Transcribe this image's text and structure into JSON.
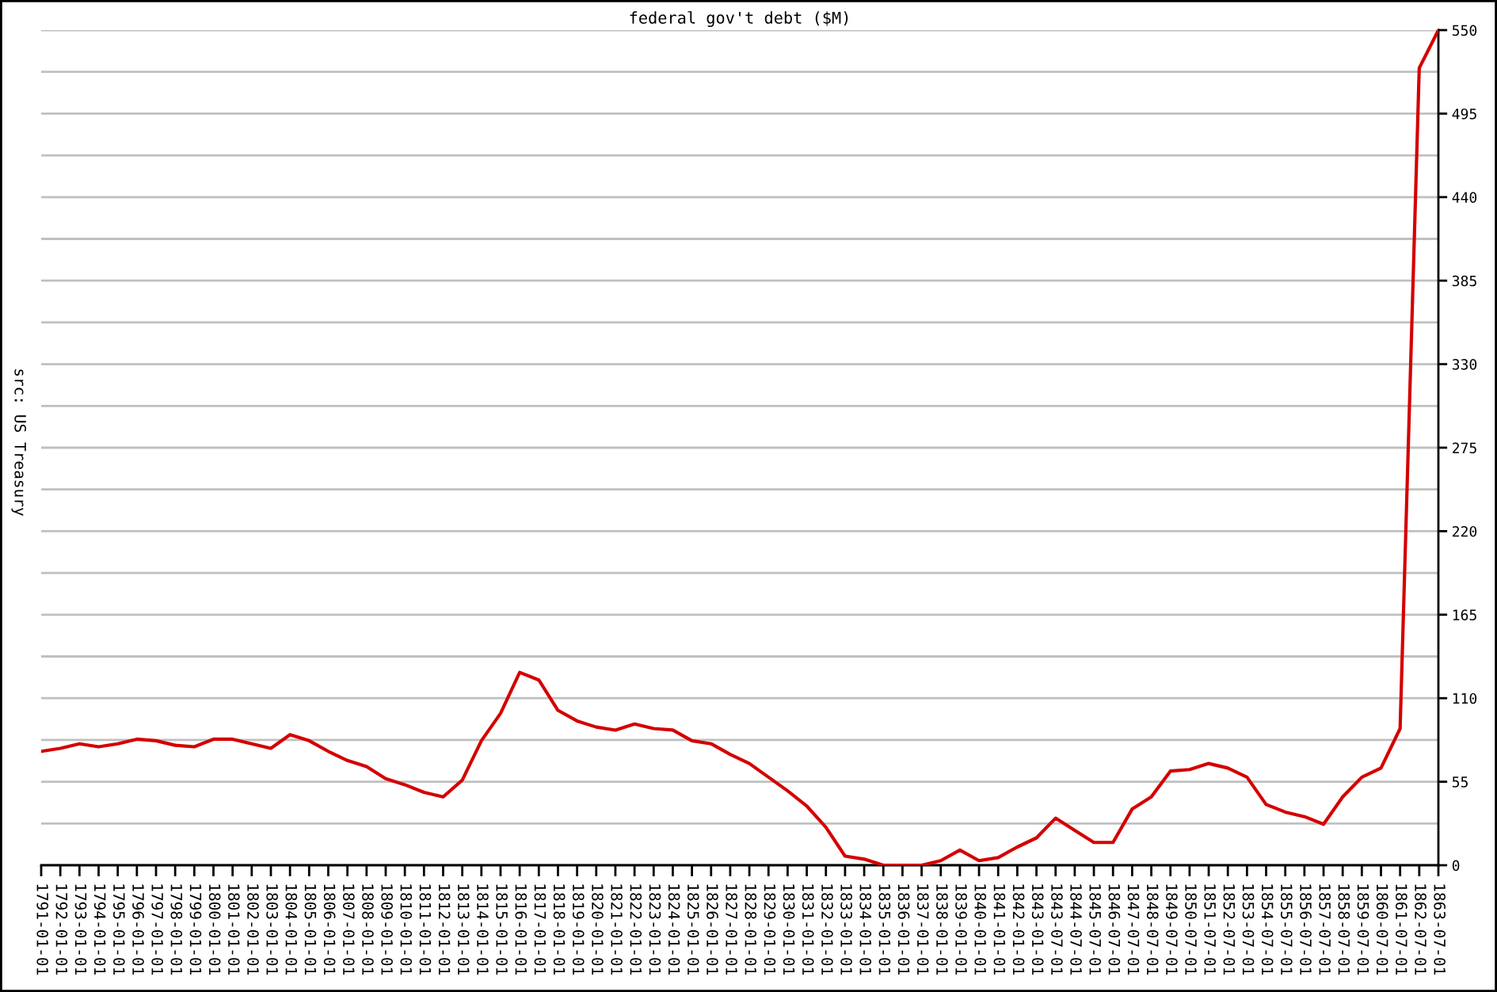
{
  "chart_data": {
    "type": "line",
    "title": "federal gov't debt ($M)",
    "annotations": [
      "src: US Treasury"
    ],
    "categories": [
      "1791-01-01",
      "1792-01-01",
      "1793-01-01",
      "1794-01-01",
      "1795-01-01",
      "1796-01-01",
      "1797-01-01",
      "1798-01-01",
      "1799-01-01",
      "1800-01-01",
      "1801-01-01",
      "1802-01-01",
      "1803-01-01",
      "1804-01-01",
      "1805-01-01",
      "1806-01-01",
      "1807-01-01",
      "1808-01-01",
      "1809-01-01",
      "1810-01-01",
      "1811-01-01",
      "1812-01-01",
      "1813-01-01",
      "1814-01-01",
      "1815-01-01",
      "1816-01-01",
      "1817-01-01",
      "1818-01-01",
      "1819-01-01",
      "1820-01-01",
      "1821-01-01",
      "1822-01-01",
      "1823-01-01",
      "1824-01-01",
      "1825-01-01",
      "1826-01-01",
      "1827-01-01",
      "1828-01-01",
      "1829-01-01",
      "1830-01-01",
      "1831-01-01",
      "1832-01-01",
      "1833-01-01",
      "1834-01-01",
      "1835-01-01",
      "1836-01-01",
      "1837-01-01",
      "1838-01-01",
      "1839-01-01",
      "1840-01-01",
      "1841-01-01",
      "1842-01-01",
      "1843-01-01",
      "1843-07-01",
      "1844-07-01",
      "1845-07-01",
      "1846-07-01",
      "1847-07-01",
      "1848-07-01",
      "1849-07-01",
      "1850-07-01",
      "1851-07-01",
      "1852-07-01",
      "1853-07-01",
      "1854-07-01",
      "1855-07-01",
      "1856-07-01",
      "1857-07-01",
      "1858-07-01",
      "1859-07-01",
      "1860-07-01",
      "1861-07-01",
      "1862-07-01",
      "1863-07-01"
    ],
    "series": [
      {
        "color": "#d40000",
        "values": [
          75,
          77,
          80,
          78,
          80,
          83,
          82,
          79,
          78,
          83,
          83,
          80,
          77,
          86,
          82,
          75,
          69,
          65,
          57,
          53,
          48,
          45,
          56,
          82,
          100,
          127,
          122,
          102,
          95,
          91,
          89,
          93,
          90,
          89,
          82,
          80,
          73,
          67,
          58,
          49,
          39,
          25,
          6,
          4,
          0,
          0,
          0,
          3,
          10,
          3,
          5,
          12,
          18,
          31,
          23,
          15,
          15,
          37,
          45,
          62,
          63,
          67,
          64,
          58,
          40,
          35,
          32,
          27,
          45,
          58,
          64,
          90,
          525,
          550
        ]
      }
    ],
    "ylim": [
      0,
      550
    ],
    "yticks": [
      0,
      {
        "value": 27.5,
        "label": null
      },
      55,
      {
        "value": 82.5,
        "label": null
      },
      110,
      {
        "value": 137.5,
        "label": null
      },
      165,
      {
        "value": 192.5,
        "label": null
      },
      220,
      {
        "value": 247.5,
        "label": null
      },
      275,
      {
        "value": 302.5,
        "label": null
      },
      330,
      {
        "value": 357.5,
        "label": null
      },
      385,
      {
        "value": 412.5,
        "label": null
      },
      440,
      {
        "value": 467.5,
        "label": null
      },
      495,
      {
        "value": 522.5,
        "label": null
      },
      550
    ],
    "grid": "y",
    "line_style": "solid"
  }
}
